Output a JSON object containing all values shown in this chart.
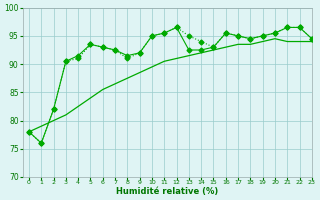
{
  "x": [
    0,
    1,
    2,
    3,
    4,
    5,
    6,
    7,
    8,
    9,
    10,
    11,
    12,
    13,
    14,
    15,
    16,
    17,
    18,
    19,
    20,
    21,
    22,
    23
  ],
  "line1": [
    78,
    76,
    82,
    90.5,
    91,
    93.5,
    93,
    92.5,
    91,
    92,
    95,
    95.5,
    96.5,
    95,
    94,
    93,
    95.5,
    95,
    94.5,
    95,
    95.5,
    96.5,
    96.5,
    94.5
  ],
  "line2": [
    78,
    76,
    82,
    90.5,
    91.5,
    93.5,
    93,
    92.5,
    91.5,
    92,
    95,
    95.5,
    96.5,
    92.5,
    92.5,
    93,
    95.5,
    95,
    94.5,
    95,
    95.5,
    96.5,
    96.5,
    94.5
  ],
  "smooth": [
    78,
    79,
    80,
    81,
    82.5,
    84,
    85.5,
    86.5,
    87.5,
    88.5,
    89.5,
    90.5,
    91,
    91.5,
    92,
    92.5,
    93,
    93.5,
    93.5,
    94,
    94.5,
    94,
    94,
    94
  ],
  "line_color": "#00aa00",
  "smooth_color": "#00aa00",
  "bg_color": "#dff4f4",
  "grid_color": "#99cccc",
  "ylim": [
    70,
    100
  ],
  "xlim": [
    -0.5,
    23
  ],
  "yticks": [
    70,
    75,
    80,
    85,
    90,
    95,
    100
  ],
  "xticks": [
    0,
    1,
    2,
    3,
    4,
    5,
    6,
    7,
    8,
    9,
    10,
    11,
    12,
    13,
    14,
    15,
    16,
    17,
    18,
    19,
    20,
    21,
    22,
    23
  ],
  "xlabel": "Humidité relative (%)",
  "marker_size": 2.5
}
